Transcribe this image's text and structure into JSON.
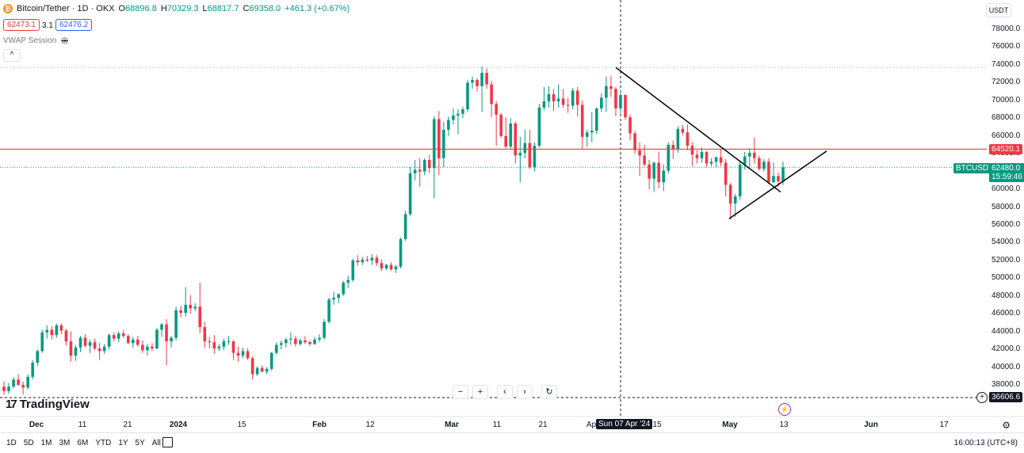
{
  "header": {
    "symbol": "Bitcoin/Tether · 1D · OKX",
    "logo_letter": "₿",
    "open_label": "O",
    "open": "68896.8",
    "high_label": "H",
    "high": "70329.3",
    "low_label": "L",
    "low": "68817.7",
    "close_label": "C",
    "close": "69358.0",
    "change": "+461.3 (+0.67%)",
    "bid": "62473.1",
    "spread": "3.1",
    "ask": "62476.2",
    "vwap_label": "VWAP Session",
    "collapse_glyph": "^"
  },
  "currency": "USDT",
  "colors": {
    "up": "#089981",
    "down": "#f23645",
    "hline": "#f23645",
    "price_line": "#089981",
    "bid": "#f23645",
    "ask": "#2962ff"
  },
  "y_axis_labels": [
    "78000.0",
    "76000.0",
    "74000.0",
    "72000.0",
    "70000.0",
    "68000.0",
    "66000.0",
    "64000.0",
    "62000.0",
    "60000.0",
    "58000.0",
    "56000.0",
    "54000.0",
    "52000.0",
    "50000.0",
    "48000.0",
    "46000.0",
    "44000.0",
    "42000.0",
    "40000.0",
    "38000.0"
  ],
  "x_axis_labels": [
    "Dec",
    "11",
    "21",
    "2024",
    "15",
    "Feb",
    "12",
    "Mar",
    "11",
    "21",
    "Ap",
    "15",
    "May",
    "13",
    "Jun",
    "17"
  ],
  "crosshair_date": "Sun 07 Apr '24",
  "hline_price_tag": "64520.1",
  "last_price_symbol": "BTCUSDT",
  "last_price": "62480.0",
  "countdown": "15:59:46",
  "dashed_level_tag": "36606.6",
  "nav_controls": [
    "−",
    "+",
    "‹",
    "›",
    "↻"
  ],
  "brand": "TradingView",
  "brand_mark": "17",
  "ranges": [
    "1D",
    "5D",
    "1M",
    "3M",
    "6M",
    "YTD",
    "1Y",
    "5Y",
    "All"
  ],
  "clock": "16:00:13 (UTC+8)",
  "settings_icon": "⚙",
  "bolt_icon": "⚡",
  "eye_icon": "◎",
  "chart_data": {
    "type": "candlestick",
    "ylim": [
      36000,
      79500
    ],
    "hline": 64520.1,
    "last_price": 62480.0,
    "dashed_level": 36606.6,
    "candles": [
      [
        37800,
        38400,
        36900,
        37300
      ],
      [
        37300,
        38200,
        37000,
        37800
      ],
      [
        37800,
        38900,
        37600,
        38600
      ],
      [
        38600,
        39200,
        37900,
        38000
      ],
      [
        38000,
        38400,
        36900,
        37700
      ],
      [
        37700,
        39200,
        37500,
        38900
      ],
      [
        38900,
        40800,
        38600,
        40500
      ],
      [
        40500,
        42000,
        40100,
        41800
      ],
      [
        41800,
        44200,
        41600,
        43900
      ],
      [
        43900,
        44700,
        43200,
        44200
      ],
      [
        44200,
        44600,
        43100,
        43600
      ],
      [
        43600,
        44900,
        43300,
        44700
      ],
      [
        44700,
        44900,
        43700,
        44100
      ],
      [
        44100,
        44300,
        42400,
        42900
      ],
      [
        42900,
        44000,
        40600,
        41300
      ],
      [
        41300,
        42500,
        40700,
        42200
      ],
      [
        42200,
        43500,
        41700,
        43300
      ],
      [
        43300,
        43700,
        42200,
        42400
      ],
      [
        42400,
        43100,
        41600,
        42800
      ],
      [
        42800,
        43200,
        41900,
        42100
      ],
      [
        42100,
        42700,
        40800,
        41800
      ],
      [
        41800,
        42600,
        41500,
        42300
      ],
      [
        42300,
        43800,
        42000,
        43600
      ],
      [
        43600,
        43900,
        42900,
        43200
      ],
      [
        43200,
        44000,
        42800,
        43800
      ],
      [
        43800,
        44200,
        43300,
        43500
      ],
      [
        43500,
        43700,
        42600,
        42700
      ],
      [
        42700,
        43400,
        42200,
        43100
      ],
      [
        43100,
        43500,
        42300,
        42500
      ],
      [
        42500,
        43000,
        41600,
        41900
      ],
      [
        41900,
        42600,
        41300,
        42300
      ],
      [
        42300,
        42700,
        41800,
        42100
      ],
      [
        42100,
        44400,
        42000,
        44200
      ],
      [
        44200,
        45000,
        43400,
        44800
      ],
      [
        44800,
        45400,
        40200,
        42900
      ],
      [
        42900,
        43500,
        42200,
        43300
      ],
      [
        43300,
        46800,
        43000,
        46400
      ],
      [
        46400,
        46900,
        45600,
        46100
      ],
      [
        46100,
        49000,
        45700,
        47000
      ],
      [
        47000,
        48100,
        46000,
        46600
      ],
      [
        46600,
        47200,
        46300,
        46800
      ],
      [
        46800,
        49500,
        43800,
        44500
      ],
      [
        44500,
        45100,
        42200,
        42900
      ],
      [
        42900,
        43400,
        42100,
        42800
      ],
      [
        42800,
        43600,
        41500,
        42100
      ],
      [
        42100,
        42600,
        41800,
        42300
      ],
      [
        42300,
        43200,
        41900,
        42900
      ],
      [
        42900,
        43500,
        42500,
        42900
      ],
      [
        42900,
        43000,
        40800,
        41600
      ],
      [
        41600,
        42300,
        40600,
        41300
      ],
      [
        41300,
        42200,
        41000,
        41800
      ],
      [
        41800,
        42100,
        40800,
        41000
      ],
      [
        41000,
        41200,
        38600,
        39200
      ],
      [
        39200,
        40100,
        39000,
        39900
      ],
      [
        39900,
        40200,
        39400,
        39500
      ],
      [
        39500,
        40000,
        39200,
        39800
      ],
      [
        39800,
        41700,
        39600,
        41600
      ],
      [
        41600,
        42800,
        41400,
        42500
      ],
      [
        42500,
        43000,
        42000,
        42700
      ],
      [
        42700,
        43300,
        42200,
        43100
      ],
      [
        43100,
        43900,
        42500,
        43200
      ],
      [
        43200,
        43500,
        42300,
        42600
      ],
      [
        42600,
        43200,
        42400,
        43000
      ],
      [
        43000,
        43500,
        42600,
        42800
      ],
      [
        42800,
        43000,
        42400,
        42600
      ],
      [
        42600,
        43400,
        42500,
        43100
      ],
      [
        43100,
        43700,
        42800,
        43300
      ],
      [
        43300,
        45400,
        43100,
        45100
      ],
      [
        45100,
        47800,
        44900,
        47600
      ],
      [
        47600,
        48500,
        47000,
        47800
      ],
      [
        47800,
        48300,
        47200,
        48200
      ],
      [
        48200,
        49700,
        48000,
        49500
      ],
      [
        49500,
        50300,
        48900,
        49800
      ],
      [
        49800,
        52200,
        49600,
        52000
      ],
      [
        52000,
        52600,
        51400,
        51800
      ],
      [
        51800,
        52400,
        51500,
        52100
      ],
      [
        52100,
        52500,
        51800,
        52000
      ],
      [
        52000,
        52700,
        51500,
        52300
      ],
      [
        52300,
        52600,
        51400,
        51700
      ],
      [
        51700,
        52100,
        50800,
        51100
      ],
      [
        51100,
        51600,
        50900,
        51500
      ],
      [
        51500,
        51800,
        50800,
        51000
      ],
      [
        51000,
        51500,
        50600,
        51300
      ],
      [
        51300,
        54600,
        51100,
        54400
      ],
      [
        54400,
        57600,
        54200,
        57200
      ],
      [
        57200,
        62500,
        57000,
        61800
      ],
      [
        61800,
        63300,
        61000,
        62200
      ],
      [
        62200,
        63500,
        60300,
        62000
      ],
      [
        62000,
        63500,
        61600,
        63300
      ],
      [
        63300,
        63900,
        61800,
        62400
      ],
      [
        62400,
        68200,
        59000,
        67900
      ],
      [
        67900,
        68800,
        61600,
        63500
      ],
      [
        63500,
        67600,
        62500,
        66700
      ],
      [
        66700,
        68200,
        66000,
        67800
      ],
      [
        67800,
        69100,
        67300,
        68300
      ],
      [
        68300,
        69000,
        66200,
        68500
      ],
      [
        68500,
        69300,
        68000,
        69000
      ],
      [
        69000,
        72300,
        68700,
        72000
      ],
      [
        72000,
        72700,
        71300,
        72300
      ],
      [
        72300,
        72500,
        71000,
        71600
      ],
      [
        71600,
        73800,
        68700,
        73100
      ],
      [
        73100,
        73600,
        71300,
        71800
      ],
      [
        71800,
        72200,
        68100,
        69600
      ],
      [
        69600,
        69900,
        64900,
        68400
      ],
      [
        68400,
        68600,
        65800,
        66000
      ],
      [
        66000,
        68100,
        64600,
        64800
      ],
      [
        64800,
        68000,
        64500,
        67400
      ],
      [
        67400,
        67600,
        62900,
        63800
      ],
      [
        63800,
        65900,
        60800,
        64100
      ],
      [
        64100,
        66700,
        63500,
        65200
      ],
      [
        65200,
        66700,
        62300,
        62500
      ],
      [
        62500,
        65300,
        62000,
        64900
      ],
      [
        64900,
        69600,
        64700,
        69200
      ],
      [
        69200,
        71500,
        68900,
        69900
      ],
      [
        69900,
        71600,
        69200,
        70700
      ],
      [
        70700,
        71300,
        68800,
        69900
      ],
      [
        69900,
        71800,
        69200,
        70200
      ],
      [
        70200,
        71300,
        69200,
        69500
      ],
      [
        69500,
        70300,
        68600,
        69400
      ],
      [
        69400,
        71400,
        69000,
        71100
      ],
      [
        71100,
        71500,
        68200,
        69500
      ],
      [
        69500,
        70000,
        64500,
        65900
      ],
      [
        65900,
        66700,
        64800,
        66400
      ],
      [
        66400,
        68700,
        65300,
        66600
      ],
      [
        66600,
        69200,
        66200,
        69100
      ],
      [
        69100,
        70800,
        68700,
        70300
      ],
      [
        70300,
        72700,
        68700,
        71600
      ],
      [
        71600,
        72800,
        70400,
        71300
      ],
      [
        71300,
        71500,
        68200,
        69100
      ],
      [
        69100,
        71000,
        68500,
        70600
      ],
      [
        70600,
        70700,
        67800,
        68100
      ],
      [
        68100,
        68400,
        65500,
        66300
      ],
      [
        66300,
        66600,
        64000,
        64400
      ],
      [
        64400,
        65300,
        61500,
        63800
      ],
      [
        63800,
        65000,
        62600,
        62800
      ],
      [
        62800,
        63300,
        60000,
        61200
      ],
      [
        61200,
        63100,
        59700,
        63000
      ],
      [
        63000,
        64200,
        60100,
        60800
      ],
      [
        60800,
        62800,
        59800,
        62100
      ],
      [
        62100,
        65300,
        61800,
        65000
      ],
      [
        65000,
        65500,
        63400,
        64500
      ],
      [
        64500,
        67100,
        64100,
        66800
      ],
      [
        66800,
        67200,
        66100,
        66400
      ],
      [
        66400,
        67300,
        64400,
        64900
      ],
      [
        64900,
        65300,
        62600,
        63900
      ],
      [
        63900,
        64400,
        62900,
        63500
      ],
      [
        63500,
        64700,
        63000,
        64200
      ],
      [
        64200,
        64300,
        62500,
        62900
      ],
      [
        62900,
        63500,
        62600,
        63100
      ],
      [
        63100,
        63700,
        62500,
        63600
      ],
      [
        63600,
        64500,
        62600,
        63000
      ],
      [
        63000,
        63400,
        59200,
        60500
      ],
      [
        60500,
        60700,
        56600,
        58400
      ],
      [
        58400,
        59500,
        56900,
        59200
      ],
      [
        59200,
        63200,
        58800,
        62800
      ],
      [
        62800,
        64200,
        62200,
        63700
      ],
      [
        63700,
        64600,
        62500,
        64100
      ],
      [
        64100,
        65800,
        62900,
        63500
      ],
      [
        63500,
        63800,
        62100,
        62300
      ],
      [
        62300,
        63400,
        62000,
        63100
      ],
      [
        63100,
        63500,
        60600,
        60800
      ],
      [
        60800,
        63000,
        60700,
        61500
      ],
      [
        61500,
        61900,
        60300,
        60900
      ],
      [
        60900,
        63100,
        60500,
        62480
      ]
    ],
    "trendlines": [
      {
        "from_date": "2024-04-07",
        "from_price": 73700,
        "to_date": "2024-05-17",
        "to_price": 59700
      },
      {
        "from_date": "2024-05-01",
        "from_price": 56700,
        "to_date": "2024-05-20",
        "to_price": 64300
      }
    ]
  }
}
